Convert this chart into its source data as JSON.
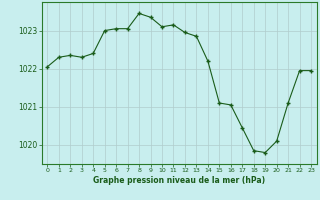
{
  "x": [
    0,
    1,
    2,
    3,
    4,
    5,
    6,
    7,
    8,
    9,
    10,
    11,
    12,
    13,
    14,
    15,
    16,
    17,
    18,
    19,
    20,
    21,
    22,
    23
  ],
  "y": [
    1022.05,
    1022.3,
    1022.35,
    1022.3,
    1022.4,
    1023.0,
    1023.05,
    1023.05,
    1023.45,
    1023.35,
    1023.1,
    1023.15,
    1022.95,
    1022.85,
    1022.2,
    1021.1,
    1021.05,
    1020.45,
    1019.85,
    1019.8,
    1020.1,
    1021.1,
    1021.95,
    1021.95
  ],
  "line_color": "#1a5c1a",
  "marker_color": "#1a5c1a",
  "bg_color": "#c8eeee",
  "grid_color": "#b0cccc",
  "ylabel_ticks": [
    1020,
    1021,
    1022,
    1023
  ],
  "xticks": [
    0,
    1,
    2,
    3,
    4,
    5,
    6,
    7,
    8,
    9,
    10,
    11,
    12,
    13,
    14,
    15,
    16,
    17,
    18,
    19,
    20,
    21,
    22,
    23
  ],
  "xlabel": "Graphe pression niveau de la mer (hPa)",
  "ylim": [
    1019.5,
    1023.75
  ],
  "xlim": [
    -0.5,
    23.5
  ],
  "spine_color": "#2a7a2a",
  "tick_color": "#1a5c1a"
}
